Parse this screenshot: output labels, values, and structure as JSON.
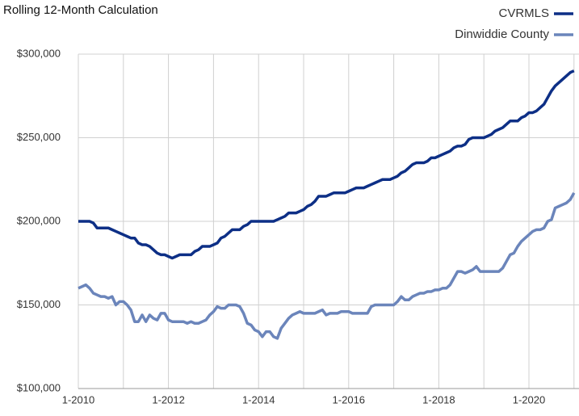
{
  "chart_data": {
    "type": "line",
    "title": "Rolling 12-Month Calculation",
    "categories": [
      "1-2010",
      null,
      null,
      null,
      null,
      null,
      null,
      null,
      null,
      null,
      null,
      null,
      null,
      null,
      null,
      null,
      null,
      null,
      null,
      null,
      null,
      null,
      null,
      null,
      "1-2012",
      null,
      null,
      null,
      null,
      null,
      null,
      null,
      null,
      null,
      null,
      null,
      null,
      null,
      null,
      null,
      null,
      null,
      null,
      null,
      null,
      null,
      null,
      null,
      "1-2014",
      null,
      null,
      null,
      null,
      null,
      null,
      null,
      null,
      null,
      null,
      null,
      null,
      null,
      null,
      null,
      null,
      null,
      null,
      null,
      null,
      null,
      null,
      null,
      "1-2016",
      null,
      null,
      null,
      null,
      null,
      null,
      null,
      null,
      null,
      null,
      null,
      null,
      null,
      null,
      null,
      null,
      null,
      null,
      null,
      null,
      null,
      null,
      null,
      "1-2018",
      null,
      null,
      null,
      null,
      null,
      null,
      null,
      null,
      null,
      null,
      null,
      null,
      null,
      null,
      null,
      null,
      null,
      null,
      null,
      null,
      null,
      null,
      null,
      "1-2020",
      null,
      null,
      null,
      null,
      null,
      null,
      null,
      null,
      null,
      null,
      null,
      null
    ],
    "series": [
      {
        "name": "CVRMLS",
        "color": "#0d2f86",
        "values": [
          200000,
          200000,
          200000,
          200000,
          199000,
          196000,
          196000,
          196000,
          196000,
          195000,
          194000,
          193000,
          192000,
          191000,
          190000,
          190000,
          187000,
          186000,
          186000,
          185000,
          183000,
          181000,
          180000,
          180000,
          179000,
          178000,
          179000,
          180000,
          180000,
          180000,
          180000,
          182000,
          183000,
          185000,
          185000,
          185000,
          186000,
          187000,
          190000,
          191000,
          193000,
          195000,
          195000,
          195000,
          197000,
          198000,
          200000,
          200000,
          200000,
          200000,
          200000,
          200000,
          200000,
          201000,
          202000,
          203000,
          205000,
          205000,
          205000,
          206000,
          207000,
          209000,
          210000,
          212000,
          215000,
          215000,
          215000,
          216000,
          217000,
          217000,
          217000,
          217000,
          218000,
          219000,
          220000,
          220000,
          220000,
          221000,
          222000,
          223000,
          224000,
          225000,
          225000,
          225000,
          226000,
          227000,
          229000,
          230000,
          232000,
          234000,
          235000,
          235000,
          235000,
          236000,
          238000,
          238000,
          239000,
          240000,
          241000,
          242000,
          244000,
          245000,
          245000,
          246000,
          249000,
          250000,
          250000,
          250000,
          250000,
          251000,
          252000,
          254000,
          255000,
          256000,
          258000,
          260000,
          260000,
          260000,
          262000,
          263000,
          265000,
          265000,
          266000,
          268000,
          270000,
          274000,
          278000,
          281000,
          283000,
          285000,
          287000,
          289000,
          290000
        ]
      },
      {
        "name": "Dinwiddie County",
        "color": "#6b85bb",
        "values": [
          160000,
          161000,
          162000,
          160000,
          157000,
          156000,
          155000,
          155000,
          154000,
          155000,
          150000,
          152000,
          152000,
          150000,
          147000,
          140000,
          140000,
          144000,
          140000,
          144000,
          142000,
          141000,
          145000,
          145000,
          141000,
          140000,
          140000,
          140000,
          140000,
          139000,
          140000,
          139000,
          139000,
          140000,
          141000,
          144000,
          146000,
          149000,
          148000,
          148000,
          150000,
          150000,
          150000,
          149000,
          145000,
          139000,
          138000,
          135000,
          134000,
          131000,
          134000,
          134000,
          131000,
          130000,
          136000,
          139000,
          142000,
          144000,
          145000,
          146000,
          145000,
          145000,
          145000,
          145000,
          146000,
          147000,
          144000,
          145000,
          145000,
          145000,
          146000,
          146000,
          146000,
          145000,
          145000,
          145000,
          145000,
          145000,
          149000,
          150000,
          150000,
          150000,
          150000,
          150000,
          150000,
          152000,
          155000,
          153000,
          153000,
          155000,
          156000,
          157000,
          157000,
          158000,
          158000,
          159000,
          159000,
          160000,
          160000,
          162000,
          166000,
          170000,
          170000,
          169000,
          170000,
          171000,
          173000,
          170000,
          170000,
          170000,
          170000,
          170000,
          170000,
          172000,
          176000,
          180000,
          181000,
          185000,
          188000,
          190000,
          192000,
          194000,
          195000,
          195000,
          196000,
          200000,
          201000,
          208000,
          209000,
          210000,
          211000,
          213000,
          217000
        ]
      }
    ],
    "ylim": [
      100000,
      300000
    ],
    "yticks": [
      {
        "value": 100000,
        "label": "$100,000"
      },
      {
        "value": 150000,
        "label": "$150,000"
      },
      {
        "value": 200000,
        "label": "$200,000"
      },
      {
        "value": 250000,
        "label": "$250,000"
      },
      {
        "value": 300000,
        "label": "$300,000"
      }
    ],
    "grid": true,
    "legend": "top-right"
  }
}
